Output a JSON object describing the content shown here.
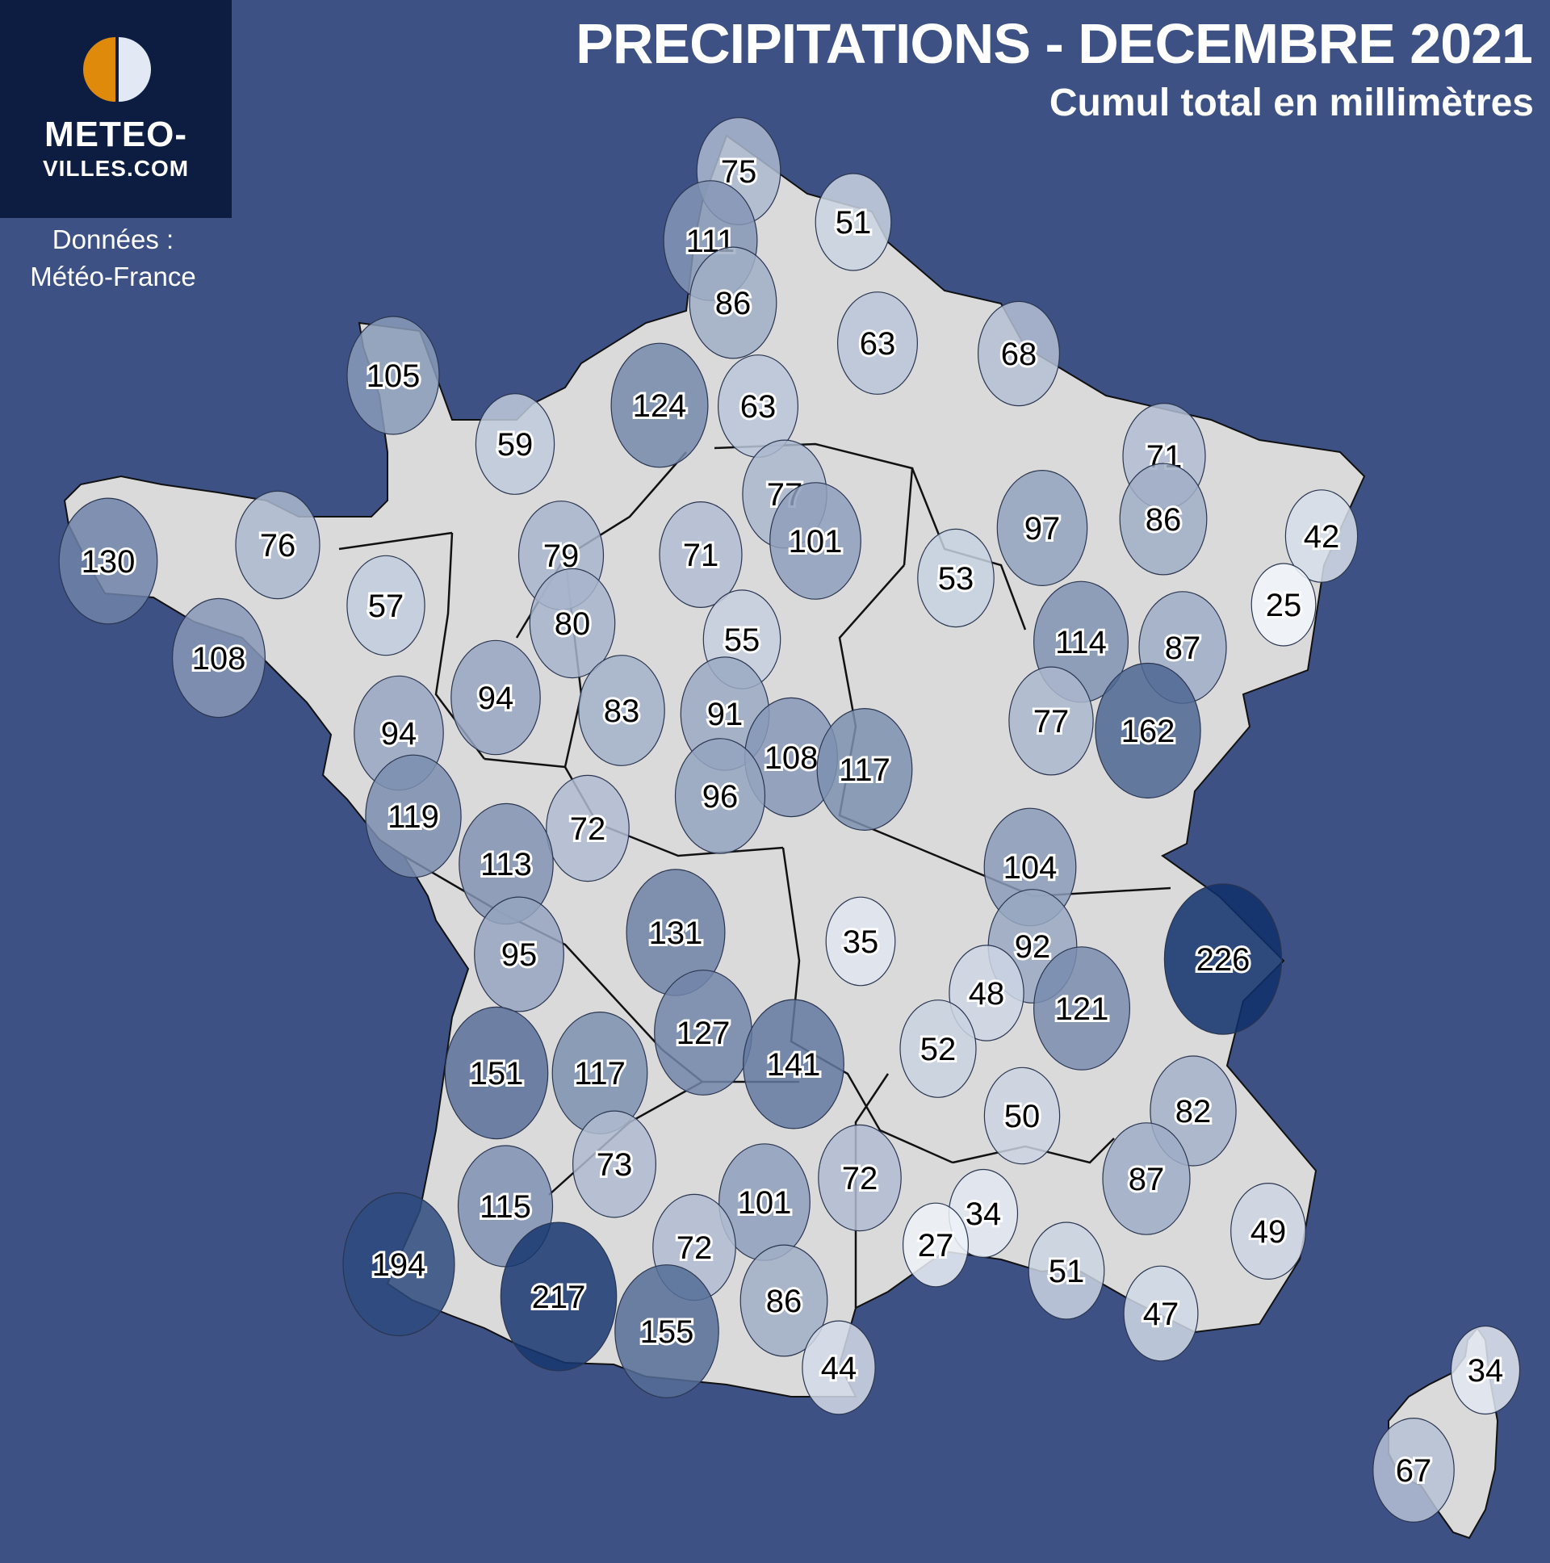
{
  "header": {
    "title": "PRECIPITATIONS - DECEMBRE 2021",
    "subtitle": "Cumul total en millimètres"
  },
  "logo": {
    "line1": "METEO-",
    "line2": "VILLES.COM",
    "icon": "sun-half-icon"
  },
  "source": {
    "line1": "Données :",
    "line2": "Météo-France"
  },
  "colors": {
    "background": "#3d5185",
    "land": "#dadada",
    "logo_box": "#0d1d42",
    "logo_sun": "#e08a0b",
    "logo_moon": "#e2e9f5",
    "scale_low": "#f2f6fb",
    "scale_high": "#0f2f6a"
  },
  "markers": [
    {
      "label": "75",
      "value": 75
    },
    {
      "label": "51",
      "value": 51
    },
    {
      "label": "111",
      "value": 111
    },
    {
      "label": "86",
      "value": 86
    },
    {
      "label": "63",
      "value": 63
    },
    {
      "label": "68",
      "value": 68
    },
    {
      "label": "105",
      "value": 105
    },
    {
      "label": "124",
      "value": 124
    },
    {
      "label": "63",
      "value": 63
    },
    {
      "label": "59",
      "value": 59
    },
    {
      "label": "71",
      "value": 71
    },
    {
      "label": "77",
      "value": 77
    },
    {
      "label": "101",
      "value": 101
    },
    {
      "label": "97",
      "value": 97
    },
    {
      "label": "86",
      "value": 86
    },
    {
      "label": "42",
      "value": 42
    },
    {
      "label": "130",
      "value": 130
    },
    {
      "label": "76",
      "value": 76
    },
    {
      "label": "79",
      "value": 79
    },
    {
      "label": "71",
      "value": 71
    },
    {
      "label": "57",
      "value": 57
    },
    {
      "label": "53",
      "value": 53
    },
    {
      "label": "25",
      "value": 25
    },
    {
      "label": "80",
      "value": 80
    },
    {
      "label": "55",
      "value": 55
    },
    {
      "label": "114",
      "value": 114
    },
    {
      "label": "87",
      "value": 87
    },
    {
      "label": "108",
      "value": 108
    },
    {
      "label": "94",
      "value": 94
    },
    {
      "label": "83",
      "value": 83
    },
    {
      "label": "91",
      "value": 91
    },
    {
      "label": "94",
      "value": 94
    },
    {
      "label": "108",
      "value": 108
    },
    {
      "label": "117",
      "value": 117
    },
    {
      "label": "77",
      "value": 77
    },
    {
      "label": "162",
      "value": 162
    },
    {
      "label": "119",
      "value": 119
    },
    {
      "label": "72",
      "value": 72
    },
    {
      "label": "96",
      "value": 96
    },
    {
      "label": "113",
      "value": 113
    },
    {
      "label": "104",
      "value": 104
    },
    {
      "label": "131",
      "value": 131
    },
    {
      "label": "35",
      "value": 35
    },
    {
      "label": "92",
      "value": 92
    },
    {
      "label": "226",
      "value": 226
    },
    {
      "label": "95",
      "value": 95
    },
    {
      "label": "48",
      "value": 48
    },
    {
      "label": "121",
      "value": 121
    },
    {
      "label": "127",
      "value": 127
    },
    {
      "label": "52",
      "value": 52
    },
    {
      "label": "151",
      "value": 151
    },
    {
      "label": "117",
      "value": 117
    },
    {
      "label": "141",
      "value": 141
    },
    {
      "label": "50",
      "value": 50
    },
    {
      "label": "82",
      "value": 82
    },
    {
      "label": "73",
      "value": 73
    },
    {
      "label": "72",
      "value": 72
    },
    {
      "label": "87",
      "value": 87
    },
    {
      "label": "115",
      "value": 115
    },
    {
      "label": "101",
      "value": 101
    },
    {
      "label": "34",
      "value": 34
    },
    {
      "label": "49",
      "value": 49
    },
    {
      "label": "194",
      "value": 194
    },
    {
      "label": "72",
      "value": 72
    },
    {
      "label": "27",
      "value": 27
    },
    {
      "label": "217",
      "value": 217
    },
    {
      "label": "86",
      "value": 86
    },
    {
      "label": "51",
      "value": 51
    },
    {
      "label": "155",
      "value": 155
    },
    {
      "label": "47",
      "value": 47
    },
    {
      "label": "44",
      "value": 44
    },
    {
      "label": "34",
      "value": 34
    },
    {
      "label": "67",
      "value": 67
    }
  ]
}
